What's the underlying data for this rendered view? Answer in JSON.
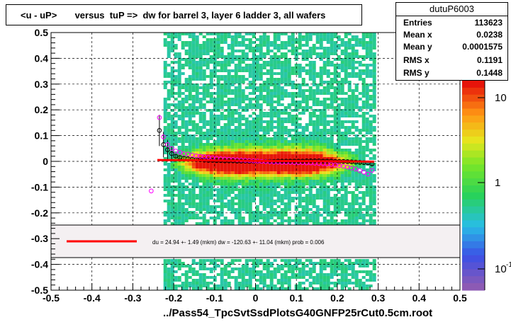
{
  "chart_data": {
    "type": "heatmap",
    "title": "<u - uP>       versus  tuP =>  dw for barrel 3, layer 6 ladder 3, all wafers",
    "xlabel": "../Pass54_TpcSvtSsdPlotsG40GNFP25rCut0.5cm.root",
    "ylabel": "",
    "xlim": [
      -0.5,
      0.5
    ],
    "ylim": [
      -0.5,
      0.5
    ],
    "grid": true,
    "x_ticks": [
      "-0.5",
      "-0.4",
      "-0.3",
      "-0.2",
      "-0.1",
      "0",
      "0.1",
      "0.2",
      "0.3",
      "0.4",
      "0.5"
    ],
    "y_ticks": [
      "-0.5",
      "-0.4",
      "-0.3",
      "-0.2",
      "-0.1",
      "0",
      "0.1",
      "0.2",
      "0.3",
      "0.4",
      "0.5"
    ],
    "colorbar": {
      "scale": "log",
      "labels": [
        "10",
        "1",
        "10"
      ],
      "label_exponents": [
        "",
        "",
        "-1"
      ]
    },
    "stats": {
      "name": "dutuP6003",
      "rows": [
        {
          "label": "Entries",
          "value": "113623"
        },
        {
          "label": "Mean x",
          "value": "0.0238"
        },
        {
          "label": "Mean y",
          "value": "0.0001575"
        },
        {
          "label": "RMS x",
          "value": "0.1191"
        },
        {
          "label": "RMS y",
          "value": "0.1448"
        }
      ]
    },
    "legend": {
      "placement": "lower-middle",
      "text": "du =    24.94 +-   1.49 (mkm) dw = -120.63 +- 11.04 (mkm) prob = 0.006"
    },
    "series": [
      {
        "style": "black-circles-with-errorbars",
        "x": [
          -0.235,
          -0.225,
          -0.215,
          -0.205,
          -0.195,
          -0.185,
          -0.175,
          -0.165,
          -0.155,
          -0.145,
          -0.135,
          -0.125,
          -0.115,
          -0.105,
          -0.095,
          -0.085,
          -0.075,
          -0.065,
          -0.055,
          -0.045,
          -0.035,
          -0.025,
          -0.015,
          -0.005,
          0.005,
          0.015,
          0.025,
          0.035,
          0.045,
          0.055,
          0.065,
          0.075,
          0.085,
          0.095,
          0.105,
          0.115,
          0.125,
          0.135,
          0.145,
          0.155,
          0.165,
          0.175,
          0.185,
          0.195,
          0.205,
          0.215,
          0.225,
          0.235,
          0.245,
          0.255,
          0.265,
          0.275,
          0.285
        ],
        "y": [
          0.12,
          0.065,
          0.045,
          0.03,
          0.02,
          0.015,
          0.012,
          0.01,
          0.008,
          0.007,
          0.006,
          0.005,
          0.004,
          0.004,
          0.003,
          0.003,
          0.002,
          0.002,
          0.002,
          0.001,
          0.001,
          0.001,
          0.0,
          0.0,
          0.0,
          0.0,
          0.0,
          0.0,
          0.0,
          0.001,
          0.001,
          0.001,
          0.001,
          0.001,
          0.001,
          0.001,
          0.002,
          0.002,
          0.002,
          0.002,
          0.001,
          0.001,
          0.001,
          0.0,
          0.0,
          0.0,
          -0.001,
          -0.002,
          -0.003,
          -0.004,
          -0.005,
          -0.006,
          -0.01
        ]
      },
      {
        "style": "magenta-circles",
        "x": [
          -0.255,
          -0.235,
          -0.225,
          -0.215,
          -0.205,
          -0.195,
          -0.185,
          -0.175,
          -0.165,
          -0.155,
          -0.145,
          -0.135,
          -0.125,
          -0.115,
          -0.105,
          -0.095,
          -0.085,
          -0.075,
          -0.065,
          -0.055,
          -0.045,
          -0.035,
          -0.025,
          -0.015,
          -0.005,
          0.005,
          0.015,
          0.025,
          0.035,
          0.045,
          0.055,
          0.065,
          0.075,
          0.085,
          0.095,
          0.105,
          0.115,
          0.125,
          0.135,
          0.145,
          0.155,
          0.165,
          0.175,
          0.185,
          0.195,
          0.205,
          0.215,
          0.225,
          0.235,
          0.245,
          0.255,
          0.265,
          0.275,
          0.285
        ],
        "y": [
          -0.115,
          0.17,
          0.095,
          0.065,
          0.05,
          0.04,
          0.035,
          0.03,
          0.028,
          0.025,
          0.022,
          0.02,
          0.018,
          0.016,
          0.014,
          0.012,
          0.01,
          0.009,
          0.008,
          0.007,
          0.006,
          0.005,
          0.004,
          0.003,
          0.002,
          0.001,
          0.0,
          -0.001,
          -0.002,
          -0.003,
          -0.003,
          -0.004,
          -0.004,
          -0.004,
          -0.005,
          -0.005,
          -0.005,
          -0.006,
          -0.006,
          -0.007,
          -0.008,
          -0.009,
          -0.01,
          -0.012,
          -0.014,
          -0.016,
          -0.019,
          -0.022,
          -0.026,
          -0.03,
          -0.036,
          -0.042,
          -0.05,
          -0.035
        ]
      },
      {
        "style": "red-fit-line",
        "x": [
          -0.24,
          0.29
        ],
        "y": [
          0.005,
          -0.001
        ]
      }
    ]
  }
}
